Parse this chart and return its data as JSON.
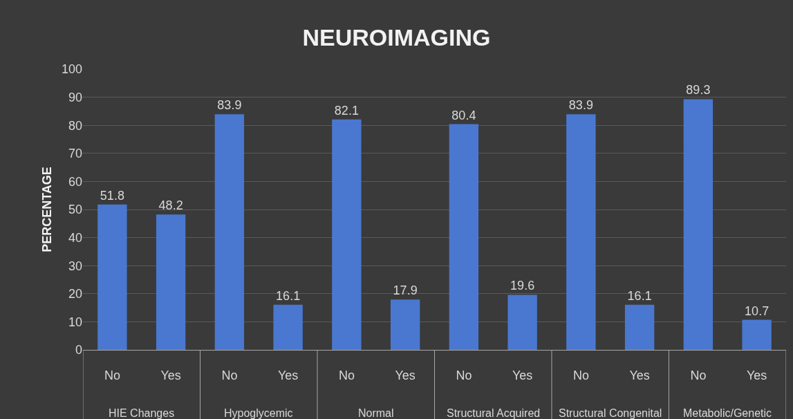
{
  "chart_data": {
    "type": "bar",
    "title": "NEUROIMAGING",
    "ylabel": "PERCENTAGE",
    "categories": [
      "No",
      "Yes",
      "No",
      "Yes",
      "No",
      "Yes",
      "No",
      "Yes",
      "No",
      "Yes",
      "No",
      "Yes"
    ],
    "values": [
      51.8,
      48.2,
      83.9,
      16.1,
      82.1,
      17.9,
      80.4,
      19.6,
      83.9,
      16.1,
      89.3,
      10.7
    ],
    "color": "#4a78d0",
    "annotations": [
      "HIE Changes",
      "Hypoglycemic",
      "Normal",
      "Structural Acquired",
      "Structural Congenital",
      "Metabolic/Genetic"
    ],
    "ylim": [
      0,
      100
    ],
    "yticks": [
      0,
      10,
      20,
      30,
      40,
      50,
      60,
      70,
      80,
      90,
      100
    ],
    "grid": "y",
    "data_labels": true
  }
}
